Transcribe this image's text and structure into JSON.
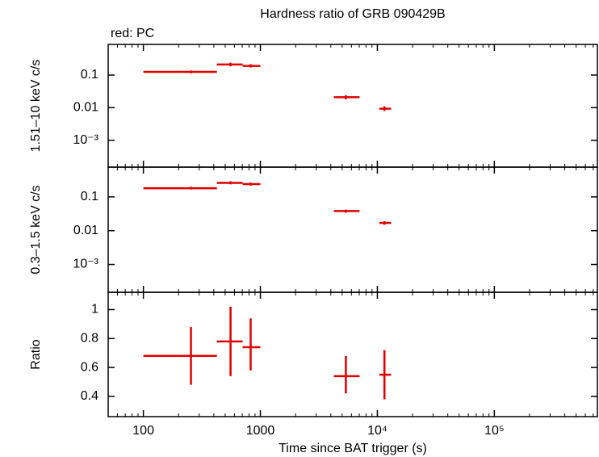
{
  "chart_data": [
    {
      "type": "errorbar",
      "title": "Hardness ratio of GRB 090429B",
      "annotation": "red: PC",
      "ylabel": "1.51–10 keV c/s",
      "log_y": true,
      "ylim": [
        0.00015,
        0.87
      ],
      "yticks": [
        0.1,
        0.01,
        {
          "value": 0.001,
          "label": "10⁻³"
        }
      ],
      "series": [
        {
          "color": "#e00000",
          "x": [
            255,
            556,
            826,
            5380,
            11500
          ],
          "xlo": [
            100,
            425,
            705,
            4250,
            10400
          ],
          "xhi": [
            425,
            705,
            1000,
            7050,
            13100
          ],
          "y": [
            0.125,
            0.21,
            0.19,
            0.021,
            0.0093
          ],
          "ylo": [
            0.113,
            0.185,
            0.17,
            0.018,
            0.0079
          ],
          "yhi": [
            0.138,
            0.24,
            0.215,
            0.024,
            0.011
          ]
        }
      ]
    },
    {
      "type": "errorbar",
      "ylabel": "0.3–1.5 keV c/s",
      "log_y": true,
      "ylim": [
        0.00015,
        0.76
      ],
      "yticks": [
        0.1,
        0.01,
        {
          "value": 0.001,
          "label": "10⁻³"
        }
      ],
      "series": [
        {
          "color": "#e00000",
          "x": [
            255,
            556,
            826,
            5380,
            11500
          ],
          "xlo": [
            100,
            425,
            705,
            4250,
            10400
          ],
          "xhi": [
            425,
            705,
            1000,
            7050,
            13100
          ],
          "y": [
            0.18,
            0.26,
            0.24,
            0.038,
            0.017
          ],
          "ylo": [
            0.165,
            0.235,
            0.215,
            0.034,
            0.015
          ],
          "yhi": [
            0.2,
            0.29,
            0.265,
            0.042,
            0.019
          ]
        }
      ]
    },
    {
      "type": "errorbar",
      "ylabel": "Ratio",
      "log_y": false,
      "ylim": [
        0.26,
        1.12
      ],
      "yticks": [
        1,
        0.8,
        0.6,
        0.4
      ],
      "xlabel": "Time since BAT trigger (s)",
      "log_x": true,
      "xlim": [
        50,
        760000
      ],
      "xticks": [
        100,
        1000,
        {
          "value": 10000,
          "label": "10⁴"
        },
        {
          "value": 100000,
          "label": "10⁵"
        }
      ],
      "series": [
        {
          "color": "#e00000",
          "x": [
            255,
            556,
            826,
            5380,
            11500
          ],
          "xlo": [
            100,
            425,
            705,
            4250,
            10400
          ],
          "xhi": [
            425,
            705,
            1000,
            7050,
            13100
          ],
          "y": [
            0.68,
            0.78,
            0.74,
            0.54,
            0.55
          ],
          "ylo": [
            0.48,
            0.54,
            0.58,
            0.42,
            0.38
          ],
          "yhi": [
            0.88,
            1.02,
            0.94,
            0.68,
            0.72
          ]
        }
      ]
    }
  ]
}
